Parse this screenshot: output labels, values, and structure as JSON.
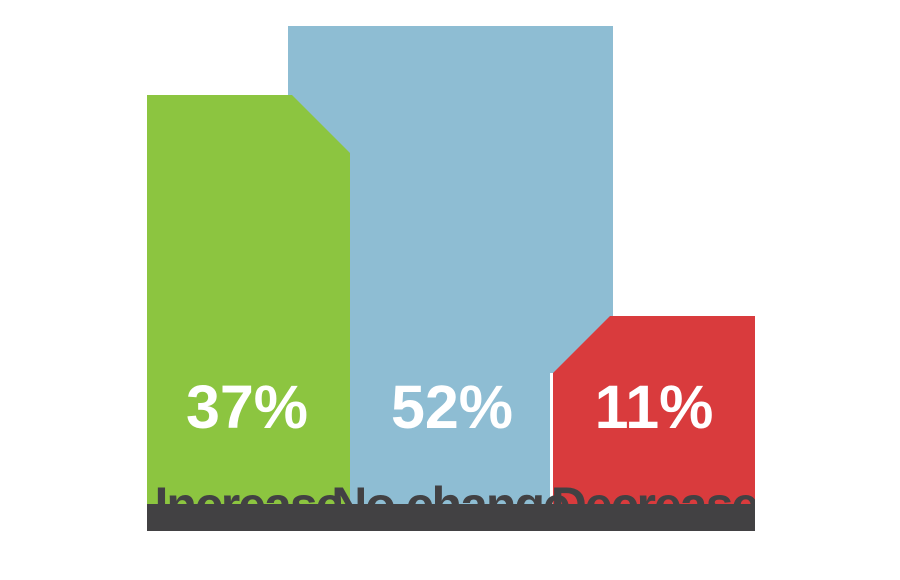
{
  "chart_data": {
    "type": "bar",
    "title": "",
    "categories": [
      "Increase",
      "No change",
      "Decrease"
    ],
    "values": [
      37,
      52,
      11
    ],
    "value_labels": [
      "37%",
      "52%",
      "11%"
    ],
    "unit": "%",
    "legend": "none",
    "axes": "none (pictorial infographic bars, heights not to scale)",
    "colors": [
      "#8CC540",
      "#8EBDD3",
      "#D93B3D"
    ]
  },
  "bars": [
    {
      "label": "Increase",
      "value_label": "37%",
      "color": "#8CC540"
    },
    {
      "label": "No change",
      "value_label": "52%",
      "color": "#8EBDD3"
    },
    {
      "label": "Decrease",
      "value_label": "11%",
      "color": "#D93B3D"
    }
  ],
  "styles": {
    "value_text_color": "#ffffff",
    "label_text_color": "#424143",
    "band_color": "#424143",
    "background": "#ffffff",
    "seam_color": "#ffffff"
  }
}
